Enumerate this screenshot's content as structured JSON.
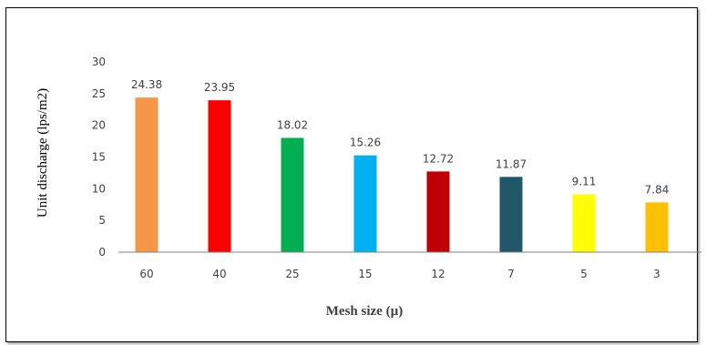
{
  "chart_data": {
    "type": "bar",
    "categories": [
      "60",
      "40",
      "25",
      "15",
      "12",
      "7",
      "5",
      "3"
    ],
    "values": [
      24.38,
      23.95,
      18.02,
      15.26,
      12.72,
      11.87,
      9.11,
      7.84
    ],
    "value_labels": [
      "24.38",
      "23.95",
      "18.02",
      "15.26",
      "12.72",
      "11.87",
      "9.11",
      "7.84"
    ],
    "bar_colors": [
      "#F79646",
      "#FF0000",
      "#00B050",
      "#00B0F0",
      "#C00000",
      "#215868",
      "#FFFF00",
      "#FFC000"
    ],
    "title": "",
    "xlabel": "Mesh size (µ)",
    "ylabel": "Unit discharge (lps/m2)",
    "ylim": [
      0,
      30
    ],
    "yticks": [
      "0",
      "5",
      "10",
      "15",
      "20",
      "25",
      "30"
    ],
    "grid": false,
    "legend": "none"
  }
}
